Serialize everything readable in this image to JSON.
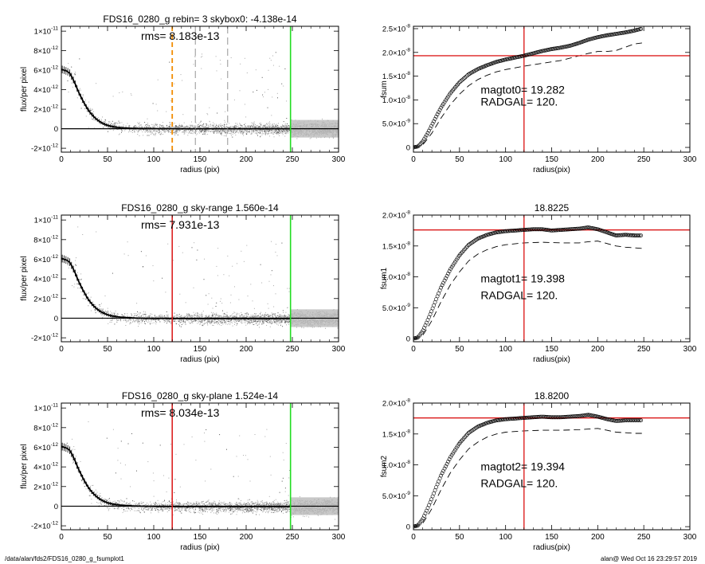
{
  "footer": {
    "left": "/data/alan/fds2/FDS16_0280_g_fsumplot1",
    "right": "alan@  Wed Oct 16 23:29:57 2019"
  },
  "chart_data": [
    {
      "id": "profile-1",
      "type": "scatter",
      "title": "FDS16_0280_g rebin= 3   skybox0: -4.138e-14",
      "annotation": "rms= 8.183e-13",
      "xlabel": "radius (pix)",
      "ylabel": "flux/per pixel",
      "xlim": [
        0,
        300
      ],
      "ylim": [
        -2.4e-12,
        1.05e-11
      ],
      "xticks": [
        0,
        50,
        100,
        150,
        200,
        250,
        300
      ],
      "yticks": [
        {
          "value": -2e-12,
          "mant": "-2×10",
          "exp": "-12"
        },
        {
          "value": 0,
          "mant": "0",
          "exp": ""
        },
        {
          "value": 2e-12,
          "mant": "2×10",
          "exp": "-12"
        },
        {
          "value": 4e-12,
          "mant": "4×10",
          "exp": "-12"
        },
        {
          "value": 6e-12,
          "mant": "6×10",
          "exp": "-12"
        },
        {
          "value": 8e-12,
          "mant": "8×10",
          "exp": "-12"
        },
        {
          "value": 1e-11,
          "mant": "1×10",
          "exp": "-11"
        }
      ],
      "profile": {
        "x": [
          0,
          3,
          6,
          9,
          12,
          15,
          18,
          21,
          24,
          27,
          30,
          33,
          36,
          39,
          42,
          45,
          48,
          51,
          54,
          57,
          60,
          65,
          70,
          75,
          80,
          90,
          100,
          120,
          150,
          200,
          248
        ],
        "y": [
          6.1e-12,
          6e-12,
          5.9e-12,
          5.7e-12,
          5.2e-12,
          4.6e-12,
          3.9e-12,
          3.3e-12,
          2.75e-12,
          2.25e-12,
          1.8e-12,
          1.45e-12,
          1.15e-12,
          9e-13,
          7e-13,
          5.5e-13,
          4.2e-13,
          3.2e-13,
          2.5e-13,
          1.9e-13,
          1.5e-13,
          1e-13,
          7e-14,
          5e-14,
          3e-14,
          1.5e-14,
          1e-14,
          5e-15,
          0,
          0,
          0
        ]
      },
      "vlines": [
        {
          "x": 120,
          "color": "#f28c00",
          "style": "dashed"
        },
        {
          "x": 145,
          "color": "#888888",
          "style": "dashed"
        },
        {
          "x": 180,
          "color": "#888888",
          "style": "dashed"
        },
        {
          "x": 248,
          "color": "#22dd22",
          "style": "solid"
        }
      ],
      "hline": 0
    },
    {
      "id": "fsum-1",
      "type": "scatter",
      "title": "",
      "xlabel": "radius(pix)",
      "ylabel": "fsum",
      "xlim": [
        0,
        300
      ],
      "ylim": [
        -1e-09,
        2.55e-08
      ],
      "xticks": [
        0,
        50,
        100,
        150,
        200,
        250,
        300
      ],
      "yticks": [
        {
          "value": 0,
          "mant": "0",
          "exp": ""
        },
        {
          "value": 5e-09,
          "mant": "5.0×10",
          "exp": "-9"
        },
        {
          "value": 1e-08,
          "mant": "1.0×10",
          "exp": "-8"
        },
        {
          "value": 1.5e-08,
          "mant": "1.5×10",
          "exp": "-8"
        },
        {
          "value": 2e-08,
          "mant": "2.0×10",
          "exp": "-8"
        },
        {
          "value": 2.5e-08,
          "mant": "2.5×10",
          "exp": "-8"
        }
      ],
      "curve": {
        "x": [
          0,
          5,
          10,
          15,
          20,
          25,
          30,
          40,
          50,
          60,
          70,
          80,
          90,
          100,
          110,
          120,
          130,
          140,
          150,
          160,
          170,
          180,
          190,
          200,
          210,
          220,
          230,
          240,
          248
        ],
        "y": [
          0,
          2e-10,
          1.2e-09,
          2.8e-09,
          4.7e-09,
          6.6e-09,
          8.4e-09,
          1.14e-08,
          1.37e-08,
          1.54e-08,
          1.65e-08,
          1.73e-08,
          1.8e-08,
          1.85e-08,
          1.89e-08,
          1.93e-08,
          1.98e-08,
          2.03e-08,
          2.07e-08,
          2.1e-08,
          2.14e-08,
          2.2e-08,
          2.27e-08,
          2.32e-08,
          2.36e-08,
          2.39e-08,
          2.42e-08,
          2.46e-08,
          2.5e-08
        ]
      },
      "dashed": {
        "x": [
          0,
          10,
          20,
          30,
          40,
          50,
          60,
          70,
          80,
          90,
          100,
          120,
          140,
          160,
          180,
          190,
          200,
          210,
          220,
          230,
          240,
          248
        ],
        "y": [
          0,
          5e-10,
          3e-09,
          6.2e-09,
          9e-09,
          1.12e-08,
          1.3e-08,
          1.43e-08,
          1.52e-08,
          1.59e-08,
          1.64e-08,
          1.71e-08,
          1.77e-08,
          1.83e-08,
          1.93e-08,
          1.98e-08,
          2.02e-08,
          2.02e-08,
          2.04e-08,
          2.11e-08,
          2.18e-08,
          2.2e-08
        ]
      },
      "vline": 120,
      "hline": 1.93e-08,
      "annotations": [
        {
          "text": "magtot0=  19.282",
          "x": 73,
          "y": 1.13e-08
        },
        {
          "text": "RADGAL=    120.",
          "x": 73,
          "y": 8.8e-09
        }
      ]
    },
    {
      "id": "profile-2",
      "type": "scatter",
      "title": "FDS16_0280_g sky-range  1.560e-14",
      "annotation": "rms= 7.931e-13",
      "xlabel": "radius (pix)",
      "ylabel": "flux/per pixel",
      "xlim": [
        0,
        300
      ],
      "ylim": [
        -2.4e-12,
        1.05e-11
      ],
      "xticks": [
        0,
        50,
        100,
        150,
        200,
        250,
        300
      ],
      "yticks": [
        {
          "value": -2e-12,
          "mant": "-2×10",
          "exp": "-12"
        },
        {
          "value": 0,
          "mant": "0",
          "exp": ""
        },
        {
          "value": 2e-12,
          "mant": "2×10",
          "exp": "-12"
        },
        {
          "value": 4e-12,
          "mant": "4×10",
          "exp": "-12"
        },
        {
          "value": 6e-12,
          "mant": "6×10",
          "exp": "-12"
        },
        {
          "value": 8e-12,
          "mant": "8×10",
          "exp": "-12"
        },
        {
          "value": 1e-11,
          "mant": "1×10",
          "exp": "-11"
        }
      ],
      "profile": {
        "x": [
          0,
          3,
          6,
          9,
          12,
          15,
          18,
          21,
          24,
          27,
          30,
          33,
          36,
          39,
          42,
          45,
          48,
          51,
          54,
          57,
          60,
          65,
          70,
          75,
          80,
          90,
          100,
          120,
          150,
          200,
          248
        ],
        "y": [
          6.1e-12,
          6e-12,
          5.9e-12,
          5.7e-12,
          5.2e-12,
          4.6e-12,
          3.9e-12,
          3.3e-12,
          2.75e-12,
          2.25e-12,
          1.8e-12,
          1.45e-12,
          1.15e-12,
          9e-13,
          7e-13,
          5.5e-13,
          4.2e-13,
          3.2e-13,
          2.5e-13,
          1.9e-13,
          1.5e-13,
          1e-13,
          7e-14,
          4e-14,
          1e-14,
          -1e-14,
          -2e-14,
          -3e-14,
          -3e-14,
          -3e-14,
          -3e-14
        ]
      },
      "vlines": [
        {
          "x": 120,
          "color": "#dd2222",
          "style": "solid"
        },
        {
          "x": 248,
          "color": "#22dd22",
          "style": "solid"
        }
      ],
      "hline": 0
    },
    {
      "id": "fsum-2",
      "type": "scatter",
      "title": "18.8225",
      "xlabel": "radius(pix)",
      "ylabel": "fsum1",
      "xlim": [
        0,
        300
      ],
      "ylim": [
        -5e-10,
        2e-08
      ],
      "xticks": [
        0,
        50,
        100,
        150,
        200,
        250,
        300
      ],
      "yticks": [
        {
          "value": 0,
          "mant": "0",
          "exp": ""
        },
        {
          "value": 5e-09,
          "mant": "5.0×10",
          "exp": "-9"
        },
        {
          "value": 1e-08,
          "mant": "1.0×10",
          "exp": "-8"
        },
        {
          "value": 1.5e-08,
          "mant": "1.5×10",
          "exp": "-8"
        },
        {
          "value": 2e-08,
          "mant": "2.0×10",
          "exp": "-8"
        }
      ],
      "curve": {
        "x": [
          0,
          5,
          10,
          15,
          20,
          25,
          30,
          40,
          50,
          60,
          70,
          80,
          90,
          100,
          110,
          120,
          130,
          140,
          150,
          160,
          170,
          180,
          190,
          200,
          210,
          220,
          230,
          240,
          248
        ],
        "y": [
          0,
          2e-10,
          1.2e-09,
          2.8e-09,
          4.6e-09,
          6.5e-09,
          8.3e-09,
          1.12e-08,
          1.35e-08,
          1.52e-08,
          1.62e-08,
          1.68e-08,
          1.72e-08,
          1.74e-08,
          1.75e-08,
          1.76e-08,
          1.77e-08,
          1.77e-08,
          1.75e-08,
          1.76e-08,
          1.77e-08,
          1.78e-08,
          1.8e-08,
          1.77e-08,
          1.72e-08,
          1.67e-08,
          1.68e-08,
          1.67e-08,
          1.67e-08
        ]
      },
      "dashed": {
        "x": [
          0,
          10,
          20,
          30,
          40,
          50,
          60,
          70,
          80,
          90,
          100,
          120,
          140,
          160,
          180,
          190,
          200,
          210,
          220,
          230,
          240,
          248
        ],
        "y": [
          0,
          5e-10,
          2.9e-09,
          6e-09,
          8.7e-09,
          1.08e-08,
          1.26e-08,
          1.37e-08,
          1.44e-08,
          1.49e-08,
          1.52e-08,
          1.55e-08,
          1.56e-08,
          1.55e-08,
          1.55e-08,
          1.57e-08,
          1.58e-08,
          1.54e-08,
          1.5e-08,
          1.48e-08,
          1.47e-08,
          1.46e-08
        ]
      },
      "vline": 120,
      "hline": 1.76e-08,
      "annotations": [
        {
          "text": "magtot1=  19.398",
          "x": 73,
          "y": 9.1e-09
        },
        {
          "text": "RADGAL=    120.",
          "x": 73,
          "y": 6.4e-09
        }
      ]
    },
    {
      "id": "profile-3",
      "type": "scatter",
      "title": "FDS16_0280_g sky-plane  1.524e-14",
      "annotation": "rms= 8.034e-13",
      "xlabel": "radius (pix)",
      "ylabel": "flux/per pixel",
      "xlim": [
        0,
        300
      ],
      "ylim": [
        -2.4e-12,
        1.05e-11
      ],
      "xticks": [
        0,
        50,
        100,
        150,
        200,
        250,
        300
      ],
      "yticks": [
        {
          "value": -2e-12,
          "mant": "-2×10",
          "exp": "-12"
        },
        {
          "value": 0,
          "mant": "0",
          "exp": ""
        },
        {
          "value": 2e-12,
          "mant": "2×10",
          "exp": "-12"
        },
        {
          "value": 4e-12,
          "mant": "4×10",
          "exp": "-12"
        },
        {
          "value": 6e-12,
          "mant": "6×10",
          "exp": "-12"
        },
        {
          "value": 8e-12,
          "mant": "8×10",
          "exp": "-12"
        },
        {
          "value": 1e-11,
          "mant": "1×10",
          "exp": "-11"
        }
      ],
      "profile": {
        "x": [
          0,
          3,
          6,
          9,
          12,
          15,
          18,
          21,
          24,
          27,
          30,
          33,
          36,
          39,
          42,
          45,
          48,
          51,
          54,
          57,
          60,
          65,
          70,
          75,
          80,
          90,
          100,
          120,
          150,
          200,
          248
        ],
        "y": [
          6.1e-12,
          6e-12,
          5.9e-12,
          5.7e-12,
          5.2e-12,
          4.6e-12,
          3.9e-12,
          3.3e-12,
          2.75e-12,
          2.25e-12,
          1.8e-12,
          1.45e-12,
          1.15e-12,
          9e-13,
          7e-13,
          5.5e-13,
          4.2e-13,
          3.2e-13,
          2.5e-13,
          1.9e-13,
          1.5e-13,
          1e-13,
          7e-14,
          4e-14,
          1e-14,
          -1e-14,
          -2e-14,
          -3e-14,
          -3e-14,
          -3e-14,
          -3e-14
        ]
      },
      "vlines": [
        {
          "x": 120,
          "color": "#dd2222",
          "style": "solid"
        },
        {
          "x": 248,
          "color": "#22dd22",
          "style": "solid"
        }
      ],
      "hline": 0
    },
    {
      "id": "fsum-3",
      "type": "scatter",
      "title": "18.8200",
      "xlabel": "radius(pix)",
      "ylabel": "fsum2",
      "xlim": [
        0,
        300
      ],
      "ylim": [
        -5e-10,
        2e-08
      ],
      "xticks": [
        0,
        50,
        100,
        150,
        200,
        250,
        300
      ],
      "yticks": [
        {
          "value": 0,
          "mant": "0",
          "exp": ""
        },
        {
          "value": 5e-09,
          "mant": "5.0×10",
          "exp": "-9"
        },
        {
          "value": 1e-08,
          "mant": "1.0×10",
          "exp": "-8"
        },
        {
          "value": 1.5e-08,
          "mant": "1.5×10",
          "exp": "-8"
        },
        {
          "value": 2e-08,
          "mant": "2.0×10",
          "exp": "-8"
        }
      ],
      "curve": {
        "x": [
          0,
          5,
          10,
          15,
          20,
          25,
          30,
          40,
          50,
          60,
          70,
          80,
          90,
          100,
          110,
          120,
          130,
          140,
          150,
          160,
          170,
          180,
          190,
          200,
          210,
          220,
          230,
          240,
          248
        ],
        "y": [
          0,
          2e-10,
          1.2e-09,
          2.8e-09,
          4.6e-09,
          6.5e-09,
          8.3e-09,
          1.12e-08,
          1.35e-08,
          1.52e-08,
          1.62e-08,
          1.68e-08,
          1.72e-08,
          1.74e-08,
          1.75e-08,
          1.76e-08,
          1.77e-08,
          1.78e-08,
          1.77e-08,
          1.77e-08,
          1.78e-08,
          1.79e-08,
          1.81e-08,
          1.78e-08,
          1.74e-08,
          1.71e-08,
          1.72e-08,
          1.72e-08,
          1.72e-08
        ]
      },
      "dashed": {
        "x": [
          0,
          10,
          20,
          30,
          40,
          50,
          60,
          70,
          80,
          90,
          100,
          120,
          140,
          160,
          180,
          190,
          200,
          210,
          220,
          230,
          240,
          248
        ],
        "y": [
          0,
          5e-10,
          2.9e-09,
          6e-09,
          8.7e-09,
          1.08e-08,
          1.26e-08,
          1.37e-08,
          1.45e-08,
          1.5e-08,
          1.53e-08,
          1.55e-08,
          1.56e-08,
          1.56e-08,
          1.57e-08,
          1.58e-08,
          1.59e-08,
          1.56e-08,
          1.53e-08,
          1.52e-08,
          1.51e-08,
          1.51e-08
        ]
      },
      "vline": 120,
      "hline": 1.76e-08,
      "annotations": [
        {
          "text": "magtot2=  19.394",
          "x": 73,
          "y": 9.1e-09
        },
        {
          "text": "RADGAL=    120.",
          "x": 73,
          "y": 6.4e-09
        }
      ]
    }
  ]
}
